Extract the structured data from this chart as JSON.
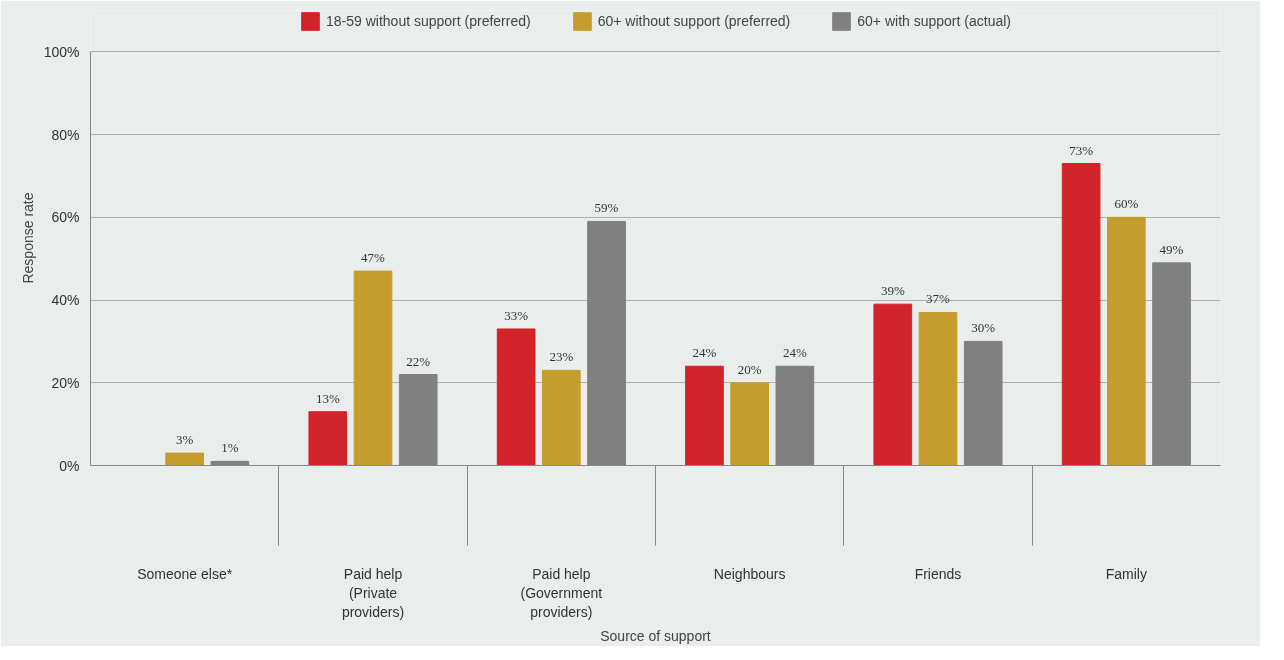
{
  "chart_data": {
    "type": "bar",
    "xlabel": "Source of support",
    "ylabel": "Response rate",
    "categories": [
      "Someone else*",
      "Paid help (Private providers)",
      "Paid help (Government providers)",
      "Neighbours",
      "Friends",
      "Family"
    ],
    "series": [
      {
        "name": "18-59 without support (preferred)",
        "color": "#d2232a",
        "values": [
          0,
          13,
          33,
          24,
          39,
          73
        ],
        "value_labels": [
          null,
          "13%",
          "33%",
          "24%",
          "39%",
          "73%"
        ]
      },
      {
        "name": "60+ without support (preferred)",
        "color": "#c59d2e",
        "values": [
          3,
          47,
          23,
          20,
          37,
          60
        ],
        "value_labels": [
          "3%",
          "47%",
          "23%",
          "20%",
          "37%",
          "60%"
        ]
      },
      {
        "name": "60+ with support (actual)",
        "color": "#808080",
        "values": [
          1,
          22,
          59,
          24,
          30,
          49
        ],
        "value_labels": [
          "1%",
          "22%",
          "59%",
          "24%",
          "30%",
          "49%"
        ]
      }
    ],
    "ylim": [
      0,
      100
    ],
    "yticks": [
      {
        "value": 0,
        "label": "0%"
      },
      {
        "value": 20,
        "label": "20%"
      },
      {
        "value": 40,
        "label": "40%"
      },
      {
        "value": 60,
        "label": "60%"
      },
      {
        "value": 80,
        "label": "80%"
      },
      {
        "value": 100,
        "label": "100%"
      }
    ],
    "grid": "y",
    "legend": "top"
  }
}
